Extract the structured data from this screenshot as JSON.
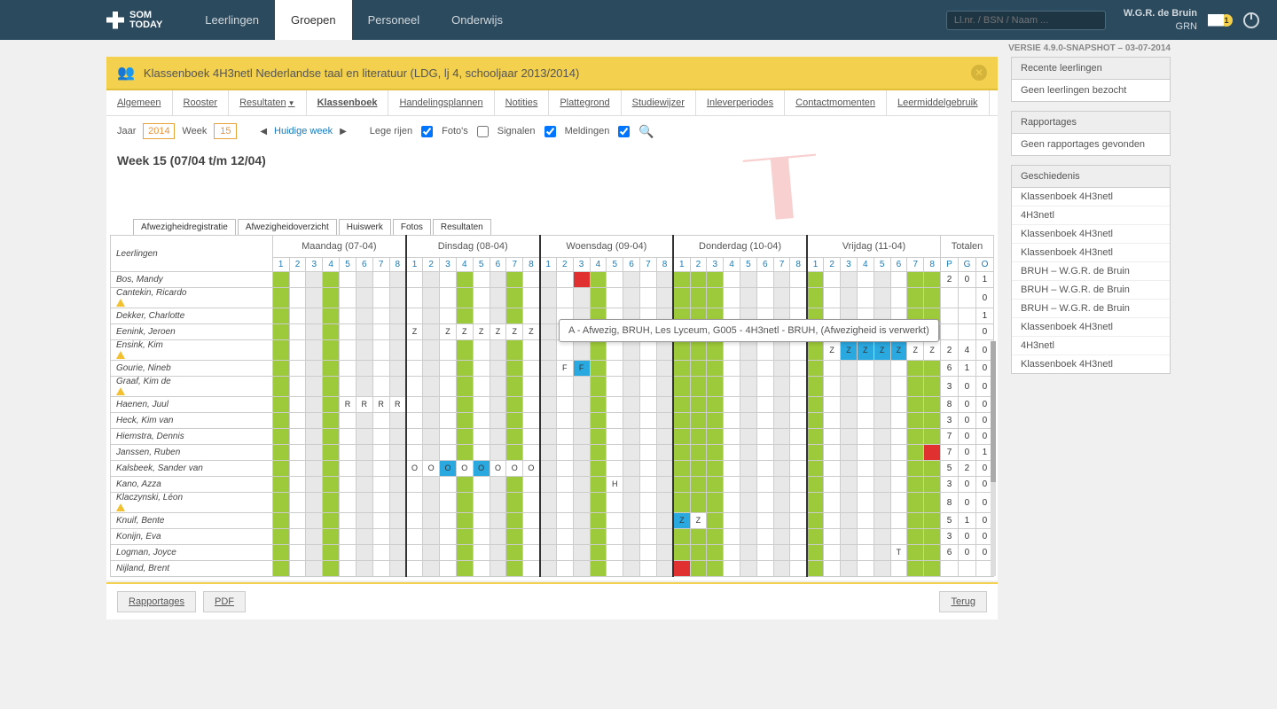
{
  "app": {
    "logo_text": "SOM\nTODAY"
  },
  "topnav": [
    {
      "label": "Leerlingen",
      "active": false
    },
    {
      "label": "Groepen",
      "active": true
    },
    {
      "label": "Personeel",
      "active": false
    },
    {
      "label": "Onderwijs",
      "active": false
    }
  ],
  "search": {
    "placeholder": "Ll.nr. / BSN / Naam ..."
  },
  "user": {
    "name": "W.G.R. de Bruin",
    "role": "GRN",
    "mail_count": "1"
  },
  "version": "VERSIE 4.9.0-SNAPSHOT – 03-07-2014",
  "page": {
    "title": "Klassenboek 4H3netl Nederlandse taal en literatuur (LDG, lj 4, schooljaar 2013/2014)"
  },
  "tabs": [
    {
      "label": "Algemeen"
    },
    {
      "label": "Rooster"
    },
    {
      "label": "Resultaten",
      "caret": true
    },
    {
      "label": "Klassenboek",
      "active": true
    },
    {
      "label": "Handelingsplannen"
    },
    {
      "label": "Notities"
    },
    {
      "label": "Plattegrond"
    },
    {
      "label": "Studiewijzer"
    },
    {
      "label": "Inleverperiodes"
    },
    {
      "label": "Contactmomenten"
    },
    {
      "label": "Leermiddelgebruik"
    }
  ],
  "toolbar": {
    "year_label": "Jaar",
    "year": "2014",
    "week_label": "Week",
    "week": "15",
    "current_week": "Huidige week",
    "empty_rows": "Lege rijen",
    "photos": "Foto's",
    "signals": "Signalen",
    "messages": "Meldingen"
  },
  "week_title": "Week 15 (07/04 t/m 12/04)",
  "subtabs": [
    "Afwezigheidregistratie",
    "Afwezigheidoverzicht",
    "Huiswerk",
    "Fotos",
    "Resultaten"
  ],
  "grid": {
    "student_header": "Leerlingen",
    "totals_header": "Totalen",
    "days": [
      {
        "label": "Maandag (07-04)"
      },
      {
        "label": "Dinsdag (08-04)"
      },
      {
        "label": "Woensdag (09-04)"
      },
      {
        "label": "Donderdag (10-04)"
      },
      {
        "label": "Vrijdag (11-04)"
      }
    ],
    "periods": [
      "1",
      "2",
      "3",
      "4",
      "5",
      "6",
      "7",
      "8"
    ],
    "total_cols": [
      "P",
      "G",
      "O"
    ],
    "green_cols": [
      0,
      3,
      11,
      14,
      19,
      24,
      25,
      26,
      32,
      38,
      39
    ],
    "grey_cols": [
      2,
      5,
      7,
      9,
      13,
      16,
      18,
      21,
      23,
      28,
      30,
      34,
      36
    ],
    "students": [
      {
        "name": "Bos, Mandy",
        "warn": false,
        "totals": [
          "2",
          "0",
          "1"
        ],
        "cells": {
          "18": {
            "t": "red"
          }
        }
      },
      {
        "name": "Cantekin, Ricardo",
        "warn": true,
        "totals": [
          "",
          "",
          "0"
        ],
        "cells": {}
      },
      {
        "name": "Dekker, Charlotte",
        "warn": false,
        "totals": [
          "",
          "",
          "1"
        ],
        "cells": {
          "3": {
            "t": "green"
          }
        }
      },
      {
        "name": "Eenink, Jeroen",
        "warn": false,
        "totals": [
          "",
          "",
          "0"
        ],
        "cells": {
          "8": {
            "txt": "Z"
          },
          "10": {
            "txt": "Z"
          },
          "11": {
            "txt": "Z"
          },
          "12": {
            "txt": "Z"
          },
          "13": {
            "txt": "Z"
          },
          "14": {
            "txt": "Z"
          },
          "15": {
            "txt": "Z"
          }
        }
      },
      {
        "name": "Ensink, Kim",
        "warn": true,
        "totals": [
          "2",
          "4",
          "0"
        ],
        "cells": {
          "33": {
            "txt": "Z"
          },
          "34": {
            "t": "blue",
            "txt": "Z"
          },
          "35": {
            "t": "blue",
            "txt": "Z"
          },
          "36": {
            "t": "blue",
            "txt": "Z"
          },
          "37": {
            "t": "blue",
            "txt": "Z"
          },
          "38": {
            "txt": "Z"
          },
          "39": {
            "txt": "Z"
          }
        }
      },
      {
        "name": "Gourie, Nineb",
        "warn": false,
        "totals": [
          "6",
          "1",
          "0"
        ],
        "cells": {
          "11": {
            "t": "green"
          },
          "14": {
            "t": "green"
          },
          "17": {
            "txt": "F"
          },
          "18": {
            "t": "blue",
            "txt": "F"
          }
        }
      },
      {
        "name": "Graaf, Kim de",
        "warn": true,
        "totals": [
          "3",
          "0",
          "0"
        ],
        "cells": {}
      },
      {
        "name": "Haenen, Juul",
        "warn": false,
        "totals": [
          "8",
          "0",
          "0"
        ],
        "cells": {
          "3": {
            "t": "green"
          },
          "4": {
            "txt": "R"
          },
          "5": {
            "txt": "R"
          },
          "6": {
            "txt": "R"
          },
          "7": {
            "txt": "R"
          }
        }
      },
      {
        "name": "Heck, Kim van",
        "warn": false,
        "totals": [
          "3",
          "0",
          "0"
        ],
        "cells": {}
      },
      {
        "name": "Hiemstra, Dennis",
        "warn": false,
        "totals": [
          "7",
          "0",
          "0"
        ],
        "cells": {}
      },
      {
        "name": "Janssen, Ruben",
        "warn": false,
        "totals": [
          "7",
          "0",
          "1"
        ],
        "cells": {
          "39": {
            "t": "red"
          }
        }
      },
      {
        "name": "Kalsbeek, Sander van",
        "warn": false,
        "totals": [
          "5",
          "2",
          "0"
        ],
        "cells": {
          "8": {
            "txt": "O"
          },
          "9": {
            "txt": "O"
          },
          "10": {
            "t": "blue",
            "txt": "O"
          },
          "11": {
            "txt": "O"
          },
          "12": {
            "t": "blue",
            "txt": "O"
          },
          "13": {
            "txt": "O"
          },
          "14": {
            "txt": "O"
          },
          "15": {
            "txt": "O"
          }
        }
      },
      {
        "name": "Kano, Azza",
        "warn": false,
        "totals": [
          "3",
          "0",
          "0"
        ],
        "cells": {
          "20": {
            "txt": "H"
          }
        }
      },
      {
        "name": "Klaczynski, Léon",
        "warn": true,
        "totals": [
          "8",
          "0",
          "0"
        ],
        "cells": {
          "3": {
            "t": "green"
          }
        }
      },
      {
        "name": "Knuif, Bente",
        "warn": false,
        "totals": [
          "5",
          "1",
          "0"
        ],
        "cells": {
          "24": {
            "t": "blue",
            "txt": "Z"
          },
          "25": {
            "txt": "Z"
          }
        }
      },
      {
        "name": "Konijn, Eva",
        "warn": false,
        "totals": [
          "3",
          "0",
          "0"
        ],
        "cells": {}
      },
      {
        "name": "Logman, Joyce",
        "warn": false,
        "totals": [
          "6",
          "0",
          "0"
        ],
        "cells": {
          "3": {
            "t": "green"
          },
          "37": {
            "txt": "T"
          }
        }
      },
      {
        "name": "Nijland, Brent",
        "warn": false,
        "totals": [
          "",
          "",
          ""
        ],
        "cells": {
          "24": {
            "t": "red"
          }
        }
      }
    ]
  },
  "tooltip": "A - Afwezig, BRUH, Les Lyceum, G005 - 4H3netl - BRUH, (Afwezigheid is verwerkt)",
  "footer": {
    "rapportages": "Rapportages",
    "pdf": "PDF",
    "terug": "Terug"
  },
  "side": {
    "recent_header": "Recente leerlingen",
    "recent_body": "Geen leerlingen bezocht",
    "rapport_header": "Rapportages",
    "rapport_body": "Geen rapportages gevonden",
    "history_header": "Geschiedenis",
    "history": [
      "Klassenboek 4H3netl",
      "4H3netl",
      "Klassenboek 4H3netl",
      "Klassenboek 4H3netl",
      "BRUH – W.G.R. de Bruin",
      "BRUH – W.G.R. de Bruin",
      "BRUH – W.G.R. de Bruin",
      "Klassenboek 4H3netl",
      "4H3netl",
      "Klassenboek 4H3netl"
    ]
  },
  "colors": {
    "green": "#9dca3a",
    "red": "#e03030",
    "blue": "#2aa8e0",
    "grey": "#e8e8e8",
    "yellow": "#f3d04e",
    "topbar": "#2c4a5e",
    "link": "#1a7ab8"
  }
}
